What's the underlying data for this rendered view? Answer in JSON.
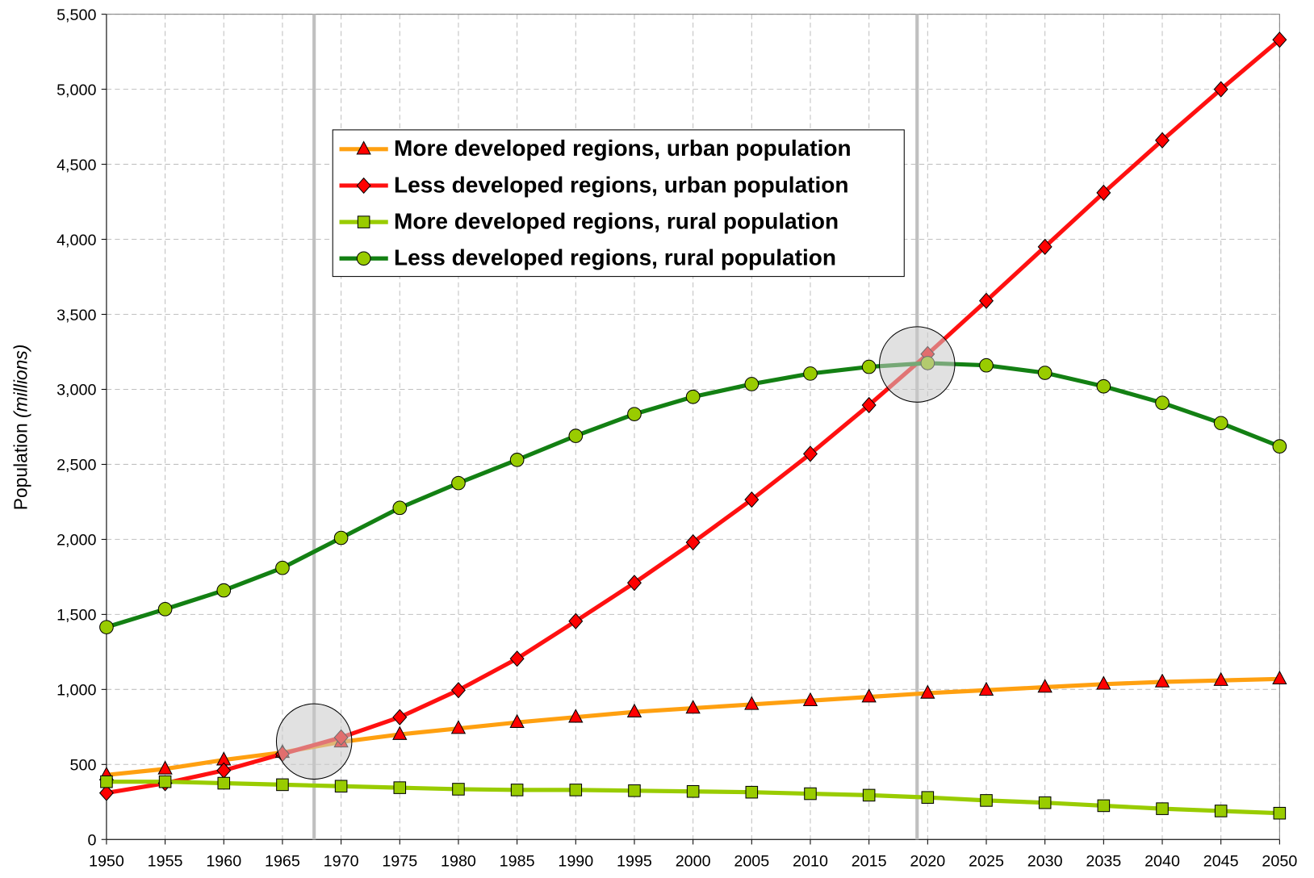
{
  "chart_data": {
    "type": "line",
    "y_label": "Population",
    "y_label_unit": "(millions)",
    "x": [
      1950,
      1955,
      1960,
      1965,
      1970,
      1975,
      1980,
      1985,
      1990,
      1995,
      2000,
      2005,
      2010,
      2015,
      2020,
      2025,
      2030,
      2035,
      2040,
      2045,
      2050
    ],
    "xlim": [
      1950,
      2050
    ],
    "xticks": [
      1950,
      1955,
      1960,
      1965,
      1970,
      1975,
      1980,
      1985,
      1990,
      1995,
      2000,
      2005,
      2010,
      2015,
      2020,
      2025,
      2030,
      2035,
      2040,
      2045,
      2050
    ],
    "ylim": [
      0,
      5500
    ],
    "yticks": [
      0,
      500,
      {
        "value": 1000,
        "label": "1,000"
      },
      {
        "value": 1500,
        "label": "1,500"
      },
      {
        "value": 2000,
        "label": "2,000"
      },
      {
        "value": 2500,
        "label": "2,500"
      },
      {
        "value": 3000,
        "label": "3,000"
      },
      {
        "value": 3500,
        "label": "3,500"
      },
      {
        "value": 4000,
        "label": "4,000"
      },
      {
        "value": 4500,
        "label": "4,500"
      },
      {
        "value": 5000,
        "label": "5,000"
      },
      {
        "value": 5500,
        "label": "5,500"
      }
    ],
    "grid": true,
    "legend": "top-center",
    "series": [
      {
        "name": "More developed regions, urban population",
        "color": "#ffa010",
        "marker": "triangle",
        "marker_color": "#ff0000",
        "values": [
          430,
          470,
          530,
          580,
          650,
          700,
          740,
          780,
          815,
          850,
          875,
          900,
          925,
          950,
          975,
          995,
          1015,
          1035,
          1050,
          1060,
          1070
        ]
      },
      {
        "name": "Less developed regions, urban population",
        "color": "#ff1010",
        "marker": "diamond",
        "marker_color": "#ff0000",
        "values": [
          310,
          375,
          460,
          570,
          680,
          815,
          995,
          1205,
          1455,
          1710,
          1980,
          2265,
          2570,
          2895,
          3235,
          3590,
          3950,
          4310,
          4660,
          5000,
          5330
        ]
      },
      {
        "name": "More developed regions, rural population",
        "color": "#99cc00",
        "marker": "square",
        "marker_color": "#99cc00",
        "values": [
          385,
          385,
          375,
          365,
          355,
          345,
          335,
          330,
          330,
          325,
          320,
          315,
          305,
          295,
          280,
          260,
          245,
          225,
          205,
          190,
          175
        ]
      },
      {
        "name": "Less developed regions, rural population",
        "color": "#138013",
        "marker": "circle",
        "marker_color": "#99cc00",
        "values": [
          1415,
          1535,
          1660,
          1810,
          2010,
          2210,
          2375,
          2530,
          2690,
          2835,
          2950,
          3035,
          3105,
          3150,
          3175,
          3160,
          3110,
          3020,
          2910,
          2775,
          2620
        ]
      }
    ],
    "highlights": [
      {
        "x": 1967.7,
        "y": 653
      },
      {
        "x": 2019.1,
        "y": 3166
      }
    ]
  }
}
